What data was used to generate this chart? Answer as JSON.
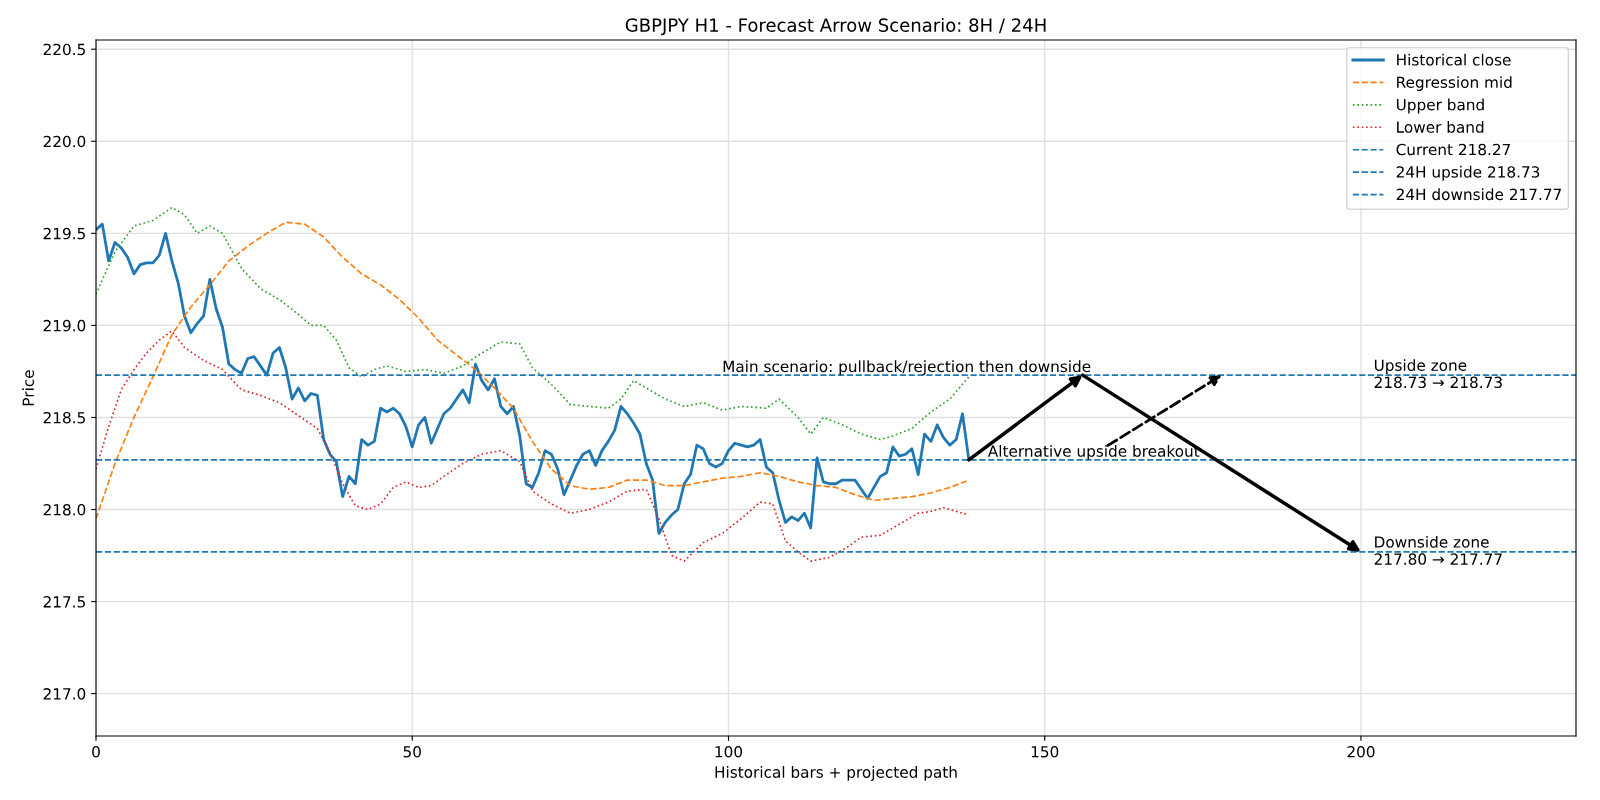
{
  "chart_data": {
    "type": "line",
    "title": "GBPJPY H1 - Forecast Arrow Scenario: 8H / 24H",
    "xlabel": "Historical bars + projected path",
    "ylabel": "Price",
    "xlim": [
      0,
      234
    ],
    "ylim": [
      216.77,
      220.55
    ],
    "xticks": [
      0,
      50,
      100,
      150,
      200
    ],
    "yticks": [
      {
        "value": 217,
        "label": "217.0"
      },
      217.5,
      {
        "value": 218,
        "label": "218.0"
      },
      218.5,
      {
        "value": 219,
        "label": "219.0"
      },
      219.5,
      {
        "value": 220,
        "label": "220.0"
      },
      220.5
    ],
    "grid": true,
    "legend": "top right",
    "series": [
      {
        "name": "Historical close",
        "color": "#1f77b4",
        "line_style": "solid",
        "x": [
          0,
          1,
          2,
          3,
          4,
          5,
          6,
          7,
          8,
          9,
          10,
          11,
          12,
          13,
          14,
          15,
          16,
          17,
          18,
          19,
          20,
          21,
          22,
          23,
          24,
          25,
          26,
          27,
          28,
          29,
          30,
          31,
          32,
          33,
          34,
          35,
          36,
          37,
          38,
          39,
          40,
          41,
          42,
          43,
          44,
          45,
          46,
          47,
          48,
          49,
          50,
          51,
          52,
          53,
          54,
          55,
          56,
          57,
          58,
          59,
          60,
          61,
          62,
          63,
          64,
          65,
          66,
          67,
          68,
          69,
          70,
          71,
          72,
          73,
          74,
          75,
          76,
          77,
          78,
          79,
          80,
          81,
          82,
          83,
          84,
          85,
          86,
          87,
          88,
          89,
          90,
          91,
          92,
          93,
          94,
          95,
          96,
          97,
          98,
          99,
          100,
          101,
          102,
          103,
          104,
          105,
          106,
          107,
          108,
          109,
          110,
          111,
          112,
          113,
          114,
          115,
          116,
          117,
          118,
          119,
          120,
          121,
          122,
          123,
          124,
          125,
          126,
          127,
          128,
          129,
          130,
          131,
          132,
          133,
          134,
          135,
          136,
          137,
          138
        ],
        "values": [
          219.52,
          219.55,
          219.35,
          219.45,
          219.42,
          219.37,
          219.28,
          219.33,
          219.34,
          219.34,
          219.38,
          219.5,
          219.35,
          219.23,
          219.05,
          218.96,
          219.01,
          219.05,
          219.25,
          219.09,
          218.99,
          218.79,
          218.76,
          218.74,
          218.82,
          218.83,
          218.78,
          218.73,
          218.85,
          218.88,
          218.77,
          218.6,
          218.66,
          218.59,
          218.63,
          218.62,
          218.38,
          218.3,
          218.26,
          218.07,
          218.18,
          218.14,
          218.38,
          218.35,
          218.37,
          218.55,
          218.53,
          218.55,
          218.52,
          218.45,
          218.34,
          218.46,
          218.5,
          218.36,
          218.44,
          218.52,
          218.55,
          218.6,
          218.65,
          218.58,
          218.79,
          218.7,
          218.65,
          218.71,
          218.56,
          218.52,
          218.56,
          218.4,
          218.14,
          218.12,
          218.2,
          218.32,
          218.3,
          218.22,
          218.08,
          218.16,
          218.24,
          218.3,
          218.32,
          218.24,
          218.32,
          218.37,
          218.43,
          218.56,
          218.52,
          218.47,
          218.41,
          218.25,
          218.16,
          217.87,
          217.93,
          217.97,
          218.0,
          218.14,
          218.19,
          218.35,
          218.33,
          218.25,
          218.23,
          218.25,
          218.32,
          218.36,
          218.35,
          218.34,
          218.35,
          218.38,
          218.23,
          218.2,
          218.05,
          217.93,
          217.96,
          217.94,
          217.98,
          217.9,
          218.28,
          218.15,
          218.14,
          218.14,
          218.16,
          218.16,
          218.16,
          218.11,
          218.06,
          218.12,
          218.18,
          218.2,
          218.34,
          218.29,
          218.3,
          218.33,
          218.19,
          218.41,
          218.37,
          218.46,
          218.39,
          218.35,
          218.38,
          218.52,
          218.27
        ]
      },
      {
        "name": "Regression mid",
        "color": "#ff7f0e",
        "line_style": "dashed",
        "x": [
          0,
          3,
          6,
          9,
          12,
          15,
          18,
          21,
          24,
          27,
          30,
          33,
          36,
          39,
          42,
          45,
          48,
          51,
          54,
          57,
          60,
          63,
          66,
          69,
          72,
          75,
          78,
          81,
          84,
          87,
          90,
          93,
          96,
          99,
          102,
          105,
          108,
          111,
          114,
          117,
          120,
          123,
          126,
          129,
          132,
          135,
          138
        ],
        "values": [
          217.95,
          218.25,
          218.5,
          218.72,
          218.95,
          219.1,
          219.22,
          219.35,
          219.43,
          219.5,
          219.56,
          219.55,
          219.48,
          219.37,
          219.28,
          219.22,
          219.14,
          219.04,
          218.92,
          218.84,
          218.76,
          218.66,
          218.55,
          218.37,
          218.22,
          218.13,
          218.11,
          218.12,
          218.16,
          218.16,
          218.13,
          218.13,
          218.15,
          218.17,
          218.18,
          218.2,
          218.18,
          218.15,
          218.13,
          218.12,
          218.08,
          218.05,
          218.06,
          218.07,
          218.09,
          218.12,
          218.16
        ]
      },
      {
        "name": "Upper band",
        "color": "#2ca02c",
        "line_style": "dotted",
        "x": [
          0,
          3,
          6,
          9,
          12,
          14,
          16,
          18,
          20,
          23,
          26,
          29,
          32,
          34,
          36,
          38,
          40,
          42,
          44,
          46,
          49,
          52,
          55,
          58,
          61,
          64,
          67,
          69,
          72,
          75,
          78,
          81,
          83,
          85,
          87,
          90,
          93,
          96,
          99,
          102,
          106,
          108,
          111,
          113,
          115,
          118,
          121,
          124,
          126,
          129,
          132,
          135,
          138
        ],
        "values": [
          219.17,
          219.4,
          219.54,
          219.57,
          219.64,
          219.6,
          219.5,
          219.54,
          219.5,
          219.31,
          219.2,
          219.14,
          219.06,
          219.0,
          219.0,
          218.92,
          218.77,
          218.72,
          218.76,
          218.78,
          218.75,
          218.76,
          218.74,
          218.78,
          218.85,
          218.91,
          218.9,
          218.77,
          218.68,
          218.57,
          218.56,
          218.55,
          218.6,
          218.7,
          218.66,
          218.6,
          218.56,
          218.58,
          218.54,
          218.56,
          218.55,
          218.6,
          218.5,
          218.41,
          218.5,
          218.46,
          218.41,
          218.38,
          218.4,
          218.44,
          218.53,
          218.6,
          218.72
        ]
      },
      {
        "name": "Lower band",
        "color": "#d62728",
        "line_style": "dotted",
        "x": [
          0,
          2,
          4,
          6,
          8,
          10,
          12,
          14,
          17,
          20,
          23,
          26,
          29,
          32,
          35,
          37,
          39,
          41,
          43,
          45,
          47,
          49,
          51,
          53,
          55,
          58,
          61,
          64,
          67,
          69,
          72,
          75,
          78,
          81,
          84,
          87,
          89,
          91,
          93,
          96,
          99,
          102,
          105,
          107,
          109,
          111,
          113,
          116,
          119,
          121,
          124,
          127,
          130,
          132,
          134,
          136,
          138
        ],
        "values": [
          218.22,
          218.45,
          218.65,
          218.76,
          218.85,
          218.92,
          218.97,
          218.88,
          218.81,
          218.76,
          218.65,
          218.62,
          218.58,
          218.51,
          218.44,
          218.31,
          218.14,
          218.02,
          218.0,
          218.03,
          218.12,
          218.15,
          218.12,
          218.13,
          218.18,
          218.25,
          218.3,
          218.32,
          218.26,
          218.1,
          218.03,
          217.98,
          218.0,
          218.04,
          218.1,
          218.11,
          217.95,
          217.75,
          217.72,
          217.82,
          217.87,
          217.95,
          218.04,
          218.03,
          217.83,
          217.77,
          217.72,
          217.74,
          217.8,
          217.85,
          217.86,
          217.92,
          217.98,
          217.99,
          218.01,
          217.99,
          217.97
        ]
      }
    ],
    "ref_lines": [
      {
        "axis": "y",
        "value": 218.27,
        "label": "Current 218.27",
        "color": "#1f77b4",
        "line_style": "dashed"
      },
      {
        "axis": "y",
        "value": 218.73,
        "label": "24H upside 218.73",
        "color": "#1f77b4",
        "line_style": "dashed"
      },
      {
        "axis": "y",
        "value": 217.77,
        "label": "24H downside 217.77",
        "color": "#1f77b4",
        "line_style": "dashed"
      }
    ],
    "annotations": [
      {
        "text": "Main scenario: pullback/rejection then downside",
        "x": 99,
        "y": 218.73
      },
      {
        "text": "Alternative upside breakout",
        "x": 141,
        "y": 218.27
      },
      {
        "text": "Upside zone\n218.73 → 218.73",
        "x": 202,
        "y": 218.73
      },
      {
        "text": "Downside zone\n217.80 → 217.77",
        "x": 202,
        "y": 217.77
      }
    ]
  }
}
